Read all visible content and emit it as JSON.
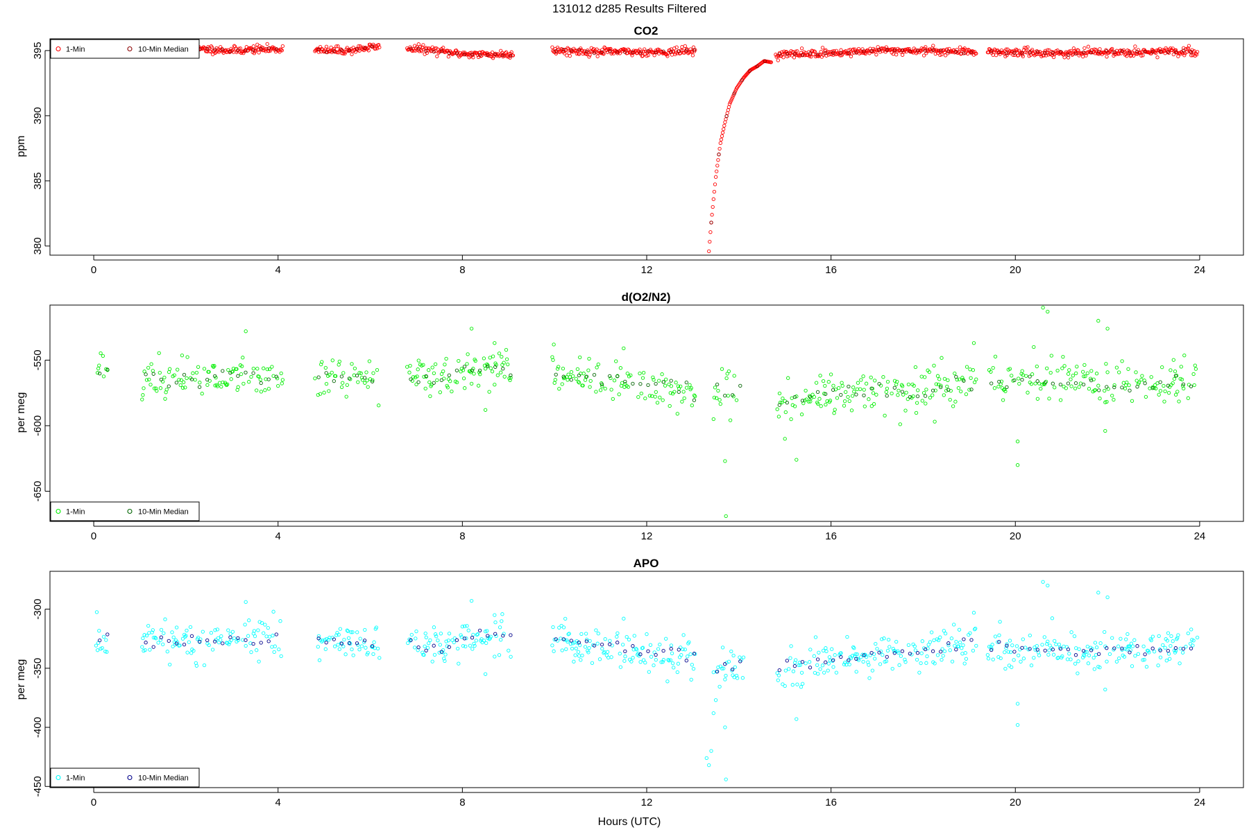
{
  "page": {
    "title": "131012   d285   Results Filtered",
    "xlabel": "Hours (UTC)"
  },
  "colors": {
    "co2_1min": "#ff0000",
    "co2_median": "#8b0000",
    "o2_1min": "#00ee00",
    "o2_median": "#006400",
    "apo_1min": "#00ffff",
    "apo_median": "#00008b"
  },
  "chart_data": [
    {
      "type": "scatter",
      "title": "CO2",
      "xlabel": "",
      "ylabel": "ppm",
      "xlim": [
        -0.95,
        24.95
      ],
      "ylim": [
        379.3,
        395.9
      ],
      "xticks": [
        0,
        4,
        8,
        12,
        16,
        20,
        24
      ],
      "yticks": [
        380,
        385,
        390,
        395
      ],
      "legend": {
        "placement": "top-left",
        "entries": [
          "1-Min",
          "10-Min Median"
        ]
      },
      "segments": [
        {
          "start": 2.05,
          "end": 4.1,
          "pts": [
            [
              2.05,
              395.1
            ],
            [
              2.5,
              395.1
            ],
            [
              3.0,
              395.0
            ],
            [
              3.5,
              395.1
            ],
            [
              4.1,
              395.1
            ]
          ]
        },
        {
          "start": 4.8,
          "end": 6.2,
          "pts": [
            [
              4.8,
              395.0
            ],
            [
              5.5,
              395.0
            ],
            [
              5.9,
              395.2
            ],
            [
              6.2,
              395.3
            ]
          ]
        },
        {
          "start": 6.8,
          "end": 9.1,
          "pts": [
            [
              6.8,
              395.2
            ],
            [
              7.4,
              395.0
            ],
            [
              7.8,
              394.8
            ],
            [
              8.4,
              394.7
            ],
            [
              9.1,
              394.7
            ]
          ]
        },
        {
          "start": 9.95,
          "end": 13.05,
          "pts": [
            [
              9.95,
              395.0
            ],
            [
              11.0,
              394.9
            ],
            [
              12.5,
              394.9
            ],
            [
              13.05,
              395.0
            ]
          ]
        },
        {
          "start": 14.8,
          "end": 19.15,
          "pts": [
            [
              14.8,
              394.7
            ],
            [
              16.0,
              394.8
            ],
            [
              17.0,
              395.0
            ],
            [
              18.0,
              395.0
            ],
            [
              19.15,
              394.9
            ]
          ]
        },
        {
          "start": 19.4,
          "end": 23.95,
          "pts": [
            [
              19.4,
              394.9
            ],
            [
              21.0,
              394.8
            ],
            [
              22.5,
              394.9
            ],
            [
              23.95,
              394.9
            ]
          ]
        }
      ],
      "dip": [
        [
          13.35,
          379.6
        ],
        [
          13.4,
          381.8
        ],
        [
          13.45,
          383.6
        ],
        [
          13.5,
          385.3
        ],
        [
          13.55,
          386.6
        ],
        [
          13.6,
          387.9
        ],
        [
          13.7,
          389.5
        ],
        [
          13.8,
          390.9
        ],
        [
          13.95,
          392.1
        ],
        [
          14.1,
          392.9
        ],
        [
          14.25,
          393.5
        ],
        [
          14.4,
          393.8
        ],
        [
          14.55,
          394.2
        ],
        [
          14.7,
          394.1
        ]
      ],
      "noise": 0.15,
      "seed": 11
    },
    {
      "type": "scatter",
      "title": "d(O2/N2)",
      "xlabel": "",
      "ylabel": "per meg",
      "xlim": [
        -0.95,
        24.95
      ],
      "ylim": [
        -673,
        -508
      ],
      "xticks": [
        0,
        4,
        8,
        12,
        16,
        20,
        24
      ],
      "yticks": [
        -550,
        -600,
        -650
      ],
      "legend": {
        "placement": "bottom-left",
        "entries": [
          "1-Min",
          "10-Min Median"
        ]
      },
      "segments": [
        {
          "start": 0.05,
          "end": 0.3,
          "pts": [
            [
              0.05,
              -556
            ],
            [
              0.3,
              -560
            ]
          ]
        },
        {
          "start": 1.05,
          "end": 4.1,
          "pts": [
            [
              1.05,
              -563
            ],
            [
              2.5,
              -563
            ],
            [
              3.5,
              -560
            ],
            [
              4.1,
              -562
            ]
          ]
        },
        {
          "start": 4.8,
          "end": 6.2,
          "pts": [
            [
              4.8,
              -562
            ],
            [
              5.5,
              -565
            ],
            [
              6.2,
              -563
            ]
          ]
        },
        {
          "start": 6.8,
          "end": 9.1,
          "pts": [
            [
              6.8,
              -564
            ],
            [
              7.5,
              -563
            ],
            [
              8.5,
              -556
            ],
            [
              9.1,
              -558
            ]
          ]
        },
        {
          "start": 9.95,
          "end": 13.05,
          "pts": [
            [
              9.95,
              -560
            ],
            [
              11.0,
              -564
            ],
            [
              12.0,
              -570
            ],
            [
              13.05,
              -574
            ]
          ]
        },
        {
          "start": 13.45,
          "end": 14.1,
          "pts": [
            [
              13.45,
              -573
            ],
            [
              14.1,
              -576
            ]
          ]
        },
        {
          "start": 14.8,
          "end": 19.15,
          "pts": [
            [
              14.8,
              -584
            ],
            [
              16.0,
              -575
            ],
            [
              17.5,
              -575
            ],
            [
              19.15,
              -568
            ]
          ]
        },
        {
          "start": 19.4,
          "end": 23.95,
          "pts": [
            [
              19.4,
              -568
            ],
            [
              20.5,
              -567
            ],
            [
              22.0,
              -569
            ],
            [
              23.95,
              -566
            ]
          ]
        }
      ],
      "noise": 8,
      "outliers": [
        [
          3.3,
          -528
        ],
        [
          8.2,
          -526
        ],
        [
          8.7,
          -537
        ],
        [
          8.5,
          -588
        ],
        [
          11.5,
          -541
        ],
        [
          13.45,
          -595
        ],
        [
          13.7,
          -627
        ],
        [
          13.72,
          -669
        ],
        [
          15.0,
          -610
        ],
        [
          15.25,
          -626
        ],
        [
          19.1,
          -537
        ],
        [
          20.05,
          -612
        ],
        [
          20.05,
          -630
        ],
        [
          20.6,
          -510
        ],
        [
          20.7,
          -513
        ],
        [
          21.8,
          -520
        ],
        [
          22.0,
          -526
        ],
        [
          21.95,
          -604
        ],
        [
          20.4,
          -540
        ]
      ],
      "seed": 23
    },
    {
      "type": "scatter",
      "title": "APO",
      "xlabel": "Hours (UTC)",
      "ylabel": "per meg",
      "xlim": [
        -0.95,
        24.95
      ],
      "ylim": [
        -451,
        -268
      ],
      "xticks": [
        0,
        4,
        8,
        12,
        16,
        20,
        24
      ],
      "yticks": [
        -300,
        -350,
        -400,
        -450
      ],
      "legend": {
        "placement": "bottom-left",
        "entries": [
          "1-Min",
          "10-Min Median"
        ]
      },
      "segments": [
        {
          "start": 0.05,
          "end": 0.3,
          "pts": [
            [
              0.05,
              -322
            ],
            [
              0.3,
              -326
            ]
          ]
        },
        {
          "start": 1.05,
          "end": 4.1,
          "pts": [
            [
              1.05,
              -328
            ],
            [
              2.5,
              -328
            ],
            [
              3.5,
              -325
            ],
            [
              4.1,
              -327
            ]
          ]
        },
        {
          "start": 4.8,
          "end": 6.2,
          "pts": [
            [
              4.8,
              -326
            ],
            [
              5.5,
              -329
            ],
            [
              6.2,
              -326
            ]
          ]
        },
        {
          "start": 6.8,
          "end": 9.1,
          "pts": [
            [
              6.8,
              -328
            ],
            [
              7.5,
              -332
            ],
            [
              8.5,
              -322
            ],
            [
              9.1,
              -324
            ]
          ]
        },
        {
          "start": 9.95,
          "end": 13.05,
          "pts": [
            [
              9.95,
              -325
            ],
            [
              11.0,
              -330
            ],
            [
              12.0,
              -336
            ],
            [
              13.05,
              -340
            ]
          ]
        },
        {
          "start": 13.45,
          "end": 14.1,
          "pts": [
            [
              13.45,
              -350
            ],
            [
              14.1,
              -345
            ]
          ]
        },
        {
          "start": 14.8,
          "end": 19.15,
          "pts": [
            [
              14.8,
              -350
            ],
            [
              16.0,
              -343
            ],
            [
              17.5,
              -338
            ],
            [
              19.15,
              -330
            ]
          ]
        },
        {
          "start": 19.4,
          "end": 23.95,
          "pts": [
            [
              19.4,
              -333
            ],
            [
              20.5,
              -333
            ],
            [
              22.0,
              -337
            ],
            [
              23.95,
              -330
            ]
          ]
        }
      ],
      "noise": 8,
      "outliers": [
        [
          3.3,
          -294
        ],
        [
          8.2,
          -293
        ],
        [
          8.7,
          -305
        ],
        [
          8.5,
          -355
        ],
        [
          11.5,
          -308
        ],
        [
          13.3,
          -426
        ],
        [
          13.35,
          -432
        ],
        [
          13.4,
          -420
        ],
        [
          13.45,
          -388
        ],
        [
          13.5,
          -377
        ],
        [
          13.7,
          -400
        ],
        [
          13.72,
          -444
        ],
        [
          15.0,
          -365
        ],
        [
          15.25,
          -393
        ],
        [
          19.1,
          -303
        ],
        [
          20.05,
          -380
        ],
        [
          20.05,
          -398
        ],
        [
          20.6,
          -277
        ],
        [
          20.7,
          -280
        ],
        [
          21.8,
          -286
        ],
        [
          22.0,
          -290
        ],
        [
          21.95,
          -368
        ]
      ],
      "seed": 37
    }
  ]
}
